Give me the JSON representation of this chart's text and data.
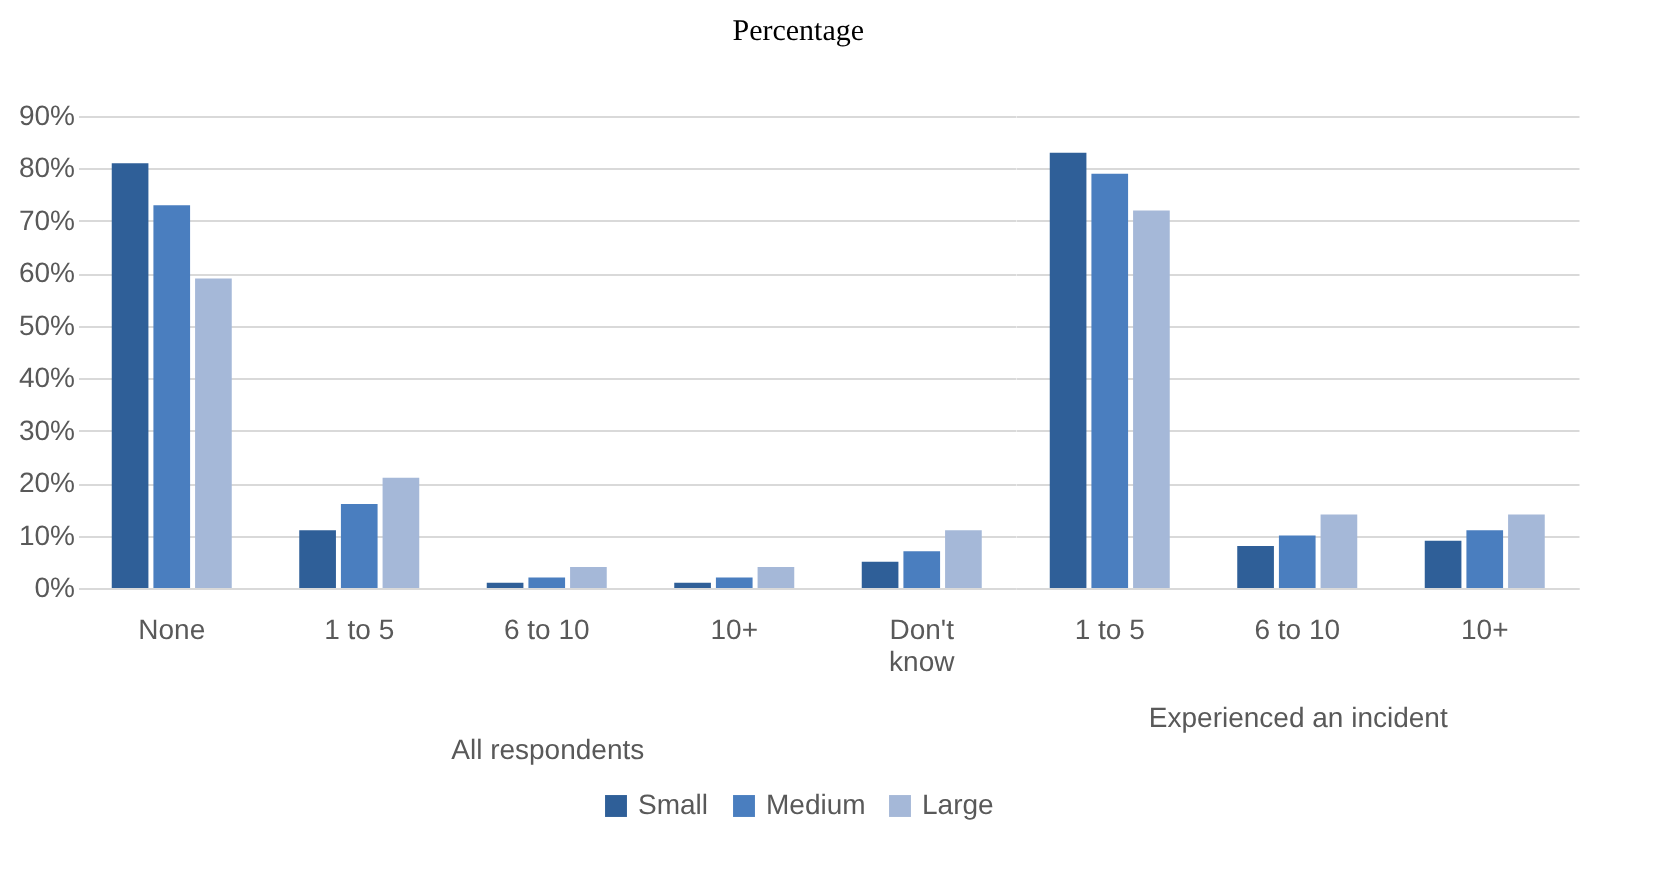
{
  "chart_data": [
    {
      "type": "bar",
      "title": "Percentage",
      "xlabel": "All respondents",
      "categories": [
        "None",
        "1 to 5",
        "6 to 10",
        "10+",
        "Don't know"
      ],
      "series": [
        {
          "name": "Small",
          "color": "#2f5f98",
          "values": [
            81,
            11,
            1,
            1,
            5
          ]
        },
        {
          "name": "Medium",
          "color": "#4a7ebf",
          "values": [
            73,
            16,
            2,
            2,
            7
          ]
        },
        {
          "name": "Large",
          "color": "#a5b8d8",
          "values": [
            59,
            21,
            4,
            4,
            11
          ]
        }
      ],
      "ylim": [
        0,
        90
      ],
      "yticks": [
        {
          "value": 0,
          "label": "0%"
        },
        {
          "value": 10,
          "label": "10%"
        },
        {
          "value": 20,
          "label": "20%"
        },
        {
          "value": 30,
          "label": "30%"
        },
        {
          "value": 40,
          "label": "40%"
        },
        {
          "value": 50,
          "label": "50%"
        },
        {
          "value": 60,
          "label": "60%"
        },
        {
          "value": 70,
          "label": "70%"
        },
        {
          "value": 80,
          "label": "80%"
        },
        {
          "value": 90,
          "label": "90%"
        }
      ],
      "grid": "y",
      "legend": "bottom"
    },
    {
      "type": "bar",
      "xlabel": "Experienced an incident",
      "categories": [
        "1 to 5",
        "6 to 10",
        "10+"
      ],
      "series": [
        {
          "name": "Small",
          "color": "#2f5f98",
          "values": [
            83,
            8,
            9
          ]
        },
        {
          "name": "Medium",
          "color": "#4a7ebf",
          "values": [
            79,
            10,
            11
          ]
        },
        {
          "name": "Large",
          "color": "#a5b8d8",
          "values": [
            72,
            14,
            14
          ]
        }
      ],
      "ylim": [
        0,
        90
      ],
      "yticks": [
        0,
        10,
        20,
        30,
        40,
        50,
        60,
        70,
        80,
        90
      ],
      "grid": "y",
      "tick_labels": "x",
      "legend": "bottom"
    }
  ]
}
